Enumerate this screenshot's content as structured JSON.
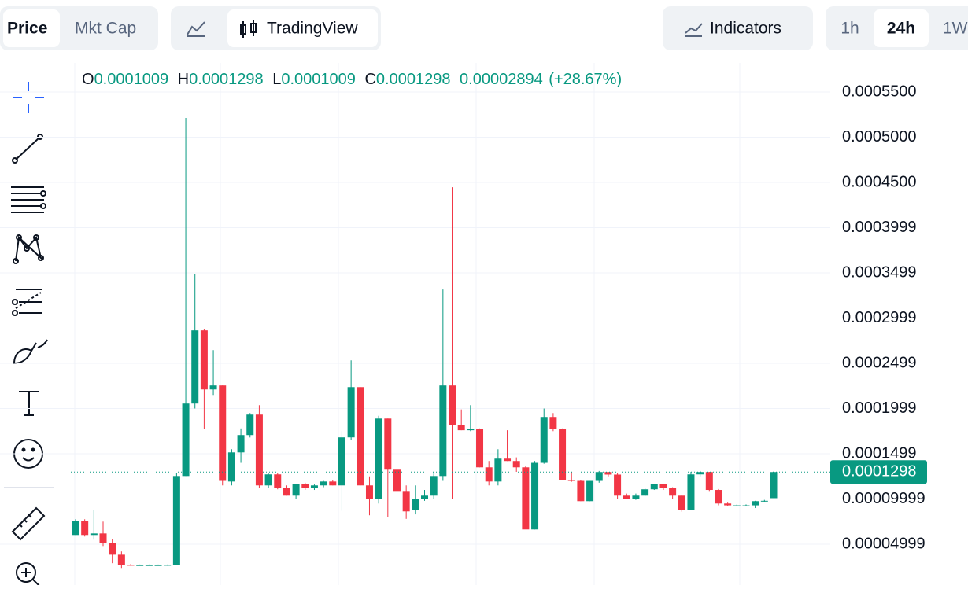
{
  "toolbar": {
    "price_tabs": [
      "Price",
      "Mkt Cap"
    ],
    "chart_mode": "TradingView",
    "indicators": "Indicators",
    "timeframes": [
      "1h",
      "24h",
      "1W"
    ]
  },
  "ohlc_legend": {
    "o_label": "O",
    "o": "0.0001009",
    "h_label": "H",
    "h": "0.0001298",
    "l_label": "L",
    "l": "0.0001009",
    "c_label": "C",
    "c": "0.0001298",
    "change": "0.00002894",
    "change_pct": "(+28.67%)"
  },
  "chart_data": {
    "type": "candlestick",
    "up_color": "#089981",
    "down_color": "#f23645",
    "ylim": [
      4.8e-06,
      0.0005822
    ],
    "yticks": [
      {
        "value": 0.00055,
        "label": "0.0005500"
      },
      {
        "value": 0.0005,
        "label": "0.0005000"
      },
      {
        "value": 0.00045,
        "label": "0.0004500"
      },
      {
        "value": 0.0004,
        "label": "0.0003999"
      },
      {
        "value": 0.00035,
        "label": "0.0003499"
      },
      {
        "value": 0.0003,
        "label": "0.0002999"
      },
      {
        "value": 0.00025,
        "label": "0.0002499"
      },
      {
        "value": 0.0002,
        "label": "0.0001999"
      },
      {
        "value": 0.00015,
        "label": "0.0001499"
      },
      {
        "value": 0.0001,
        "label": "0.00009999"
      },
      {
        "value": 5e-05,
        "label": "0.00004999"
      }
    ],
    "current_price": {
      "value": 0.0001298,
      "label": "0.0001298"
    },
    "open": [
      6.02e-05,
      7.59e-05,
      6.02e-05,
      6.19e-05,
      5.15e-05,
      3.84e-05,
      2.71e-05,
      2.68e-05,
      2.68e-05,
      2.68e-05,
      2.68e-05,
      2.71e-05,
      0.0001254,
      0.0002055,
      0.0002864,
      0.0002211,
      0.0002255,
      0.0001193,
      0.0001515,
      0.0001707,
      0.0001933,
      0.000115,
      0.0001272,
      0.0001124,
      0.0001037,
      0.0001167,
      0.0001124,
      0.000115,
      0.0001193,
      0.000115,
      0.0001681,
      0.0002237,
      0.000115,
      0.0001,
      0.0001889,
      0.0001324,
      0.000108,
      8.8e-05,
      0.0001,
      0.0001037,
      0.0001254,
      0.0002255,
      0.000182,
      0.000176,
      0.0001776,
      0.000135,
      0.0001193,
      0.0001446,
      0.000142,
      0.000135,
      6.63e-05,
      0.00014,
      0.0001907,
      0.0001776,
      0.0001211,
      0.00012,
      9.76e-05,
      0.00012,
      0.0001298,
      0.000127,
      0.0001037,
      0.0001,
      0.0001037,
      0.0001107,
      0.0001167,
      0.0001124,
      0.0001037,
      8.8e-05,
      0.0001272,
      0.0001298,
      0.00011,
      9.5e-05,
      9.3e-05,
      9.3e-05,
      9.3e-05,
      9.76e-05,
      0.0001009
    ],
    "high": [
      7.76e-05,
      7.76e-05,
      8.8e-05,
      7.5e-05,
      5.6e-05,
      4.2e-05,
      2.8e-05,
      2.75e-05,
      2.75e-05,
      2.75e-05,
      2.75e-05,
      0.000129,
      0.0005213,
      0.000349,
      0.000288,
      0.0002646,
      0.0002255,
      0.000155,
      0.000178,
      0.000195,
      0.0002037,
      0.000129,
      0.000129,
      0.000115,
      0.0001167,
      0.000118,
      0.000116,
      0.00012,
      0.000121,
      0.000175,
      0.0002533,
      0.0002237,
      0.000125,
      0.000192,
      0.0001889,
      0.0001324,
      0.000115,
      0.000115,
      0.00011,
      0.00013,
      0.0003316,
      0.0004447,
      0.000199,
      0.0002037,
      0.000178,
      0.000142,
      0.000155,
      0.000176,
      0.000146,
      0.000136,
      0.000142,
      0.0002,
      0.000195,
      0.000178,
      0.00013,
      0.000121,
      0.00012,
      0.000131,
      0.00013,
      0.000129,
      0.000106,
      0.000106,
      0.000112,
      0.000117,
      0.000117,
      0.000113,
      0.000104,
      0.00013,
      0.000131,
      0.00013,
      0.000111,
      9.6e-05,
      9.4e-05,
      9.4e-05,
      9.8e-05,
      9.9e-05,
      0.0001298
    ],
    "low": [
      6.02e-05,
      5.85e-05,
      5.5e-05,
      4.8e-05,
      2.9e-05,
      2.37e-05,
      2.62e-05,
      2.62e-05,
      2.62e-05,
      2.62e-05,
      2.62e-05,
      2.71e-05,
      0.0001254,
      0.0002,
      0.0001776,
      0.000215,
      0.000115,
      0.000115,
      0.00014,
      0.000168,
      0.000112,
      0.000112,
      0.0001107,
      0.0001037,
      0.0001,
      0.00011,
      0.00011,
      0.000113,
      0.000115,
      8.7e-05,
      0.000165,
      0.000115,
      8.2e-05,
      9.5e-05,
      8e-05,
      9.5e-05,
      7.8e-05,
      8.3e-05,
      9.8e-05,
      0.0001,
      0.00012,
      0.0001,
      0.000176,
      0.000175,
      0.000135,
      0.000115,
      0.000115,
      0.000142,
      0.00013,
      6.9e-05,
      6.63e-05,
      0.000139,
      0.000175,
      0.0001211,
      0.000119,
      9.76e-05,
      9.76e-05,
      0.000118,
      0.000125,
      0.0001,
      0.0001,
      9.9e-05,
      0.000103,
      0.00011,
      0.00011,
      0.0001,
      8.6e-05,
      8.8e-05,
      0.000125,
      0.000108,
      9.3e-05,
      9.2e-05,
      9.2e-05,
      9.2e-05,
      9e-05,
      9.7e-05,
      0.0001009
    ],
    "close": [
      7.59e-05,
      6.02e-05,
      6.19e-05,
      5.15e-05,
      3.84e-05,
      2.71e-05,
      2.68e-05,
      2.68e-05,
      2.68e-05,
      2.68e-05,
      2.71e-05,
      0.0001254,
      0.0002055,
      0.0002864,
      0.0002211,
      0.0002255,
      0.00012,
      0.0001515,
      0.0001707,
      0.0001933,
      0.000115,
      0.0001272,
      0.0001124,
      0.0001037,
      0.0001167,
      0.0001124,
      0.000115,
      0.0001193,
      0.000115,
      0.0001681,
      0.0002237,
      0.000115,
      0.0001,
      0.0001889,
      0.0001324,
      0.000108,
      8.63e-05,
      0.0001,
      0.0001037,
      0.0001254,
      0.0002255,
      0.000182,
      0.000176,
      0.0001776,
      0.000135,
      0.0001193,
      0.0001446,
      0.000142,
      0.000135,
      6.63e-05,
      0.00014,
      0.0001907,
      0.0001776,
      0.0001211,
      0.00012,
      9.76e-05,
      0.00012,
      0.0001298,
      0.000127,
      0.0001037,
      0.0001,
      0.0001037,
      0.0001107,
      0.0001167,
      0.0001124,
      0.0001037,
      8.8e-05,
      0.0001272,
      0.0001298,
      0.00011,
      9.5e-05,
      9.3e-05,
      9.3e-05,
      9.3e-05,
      9.76e-05,
      9.8e-05,
      0.0001298
    ]
  }
}
